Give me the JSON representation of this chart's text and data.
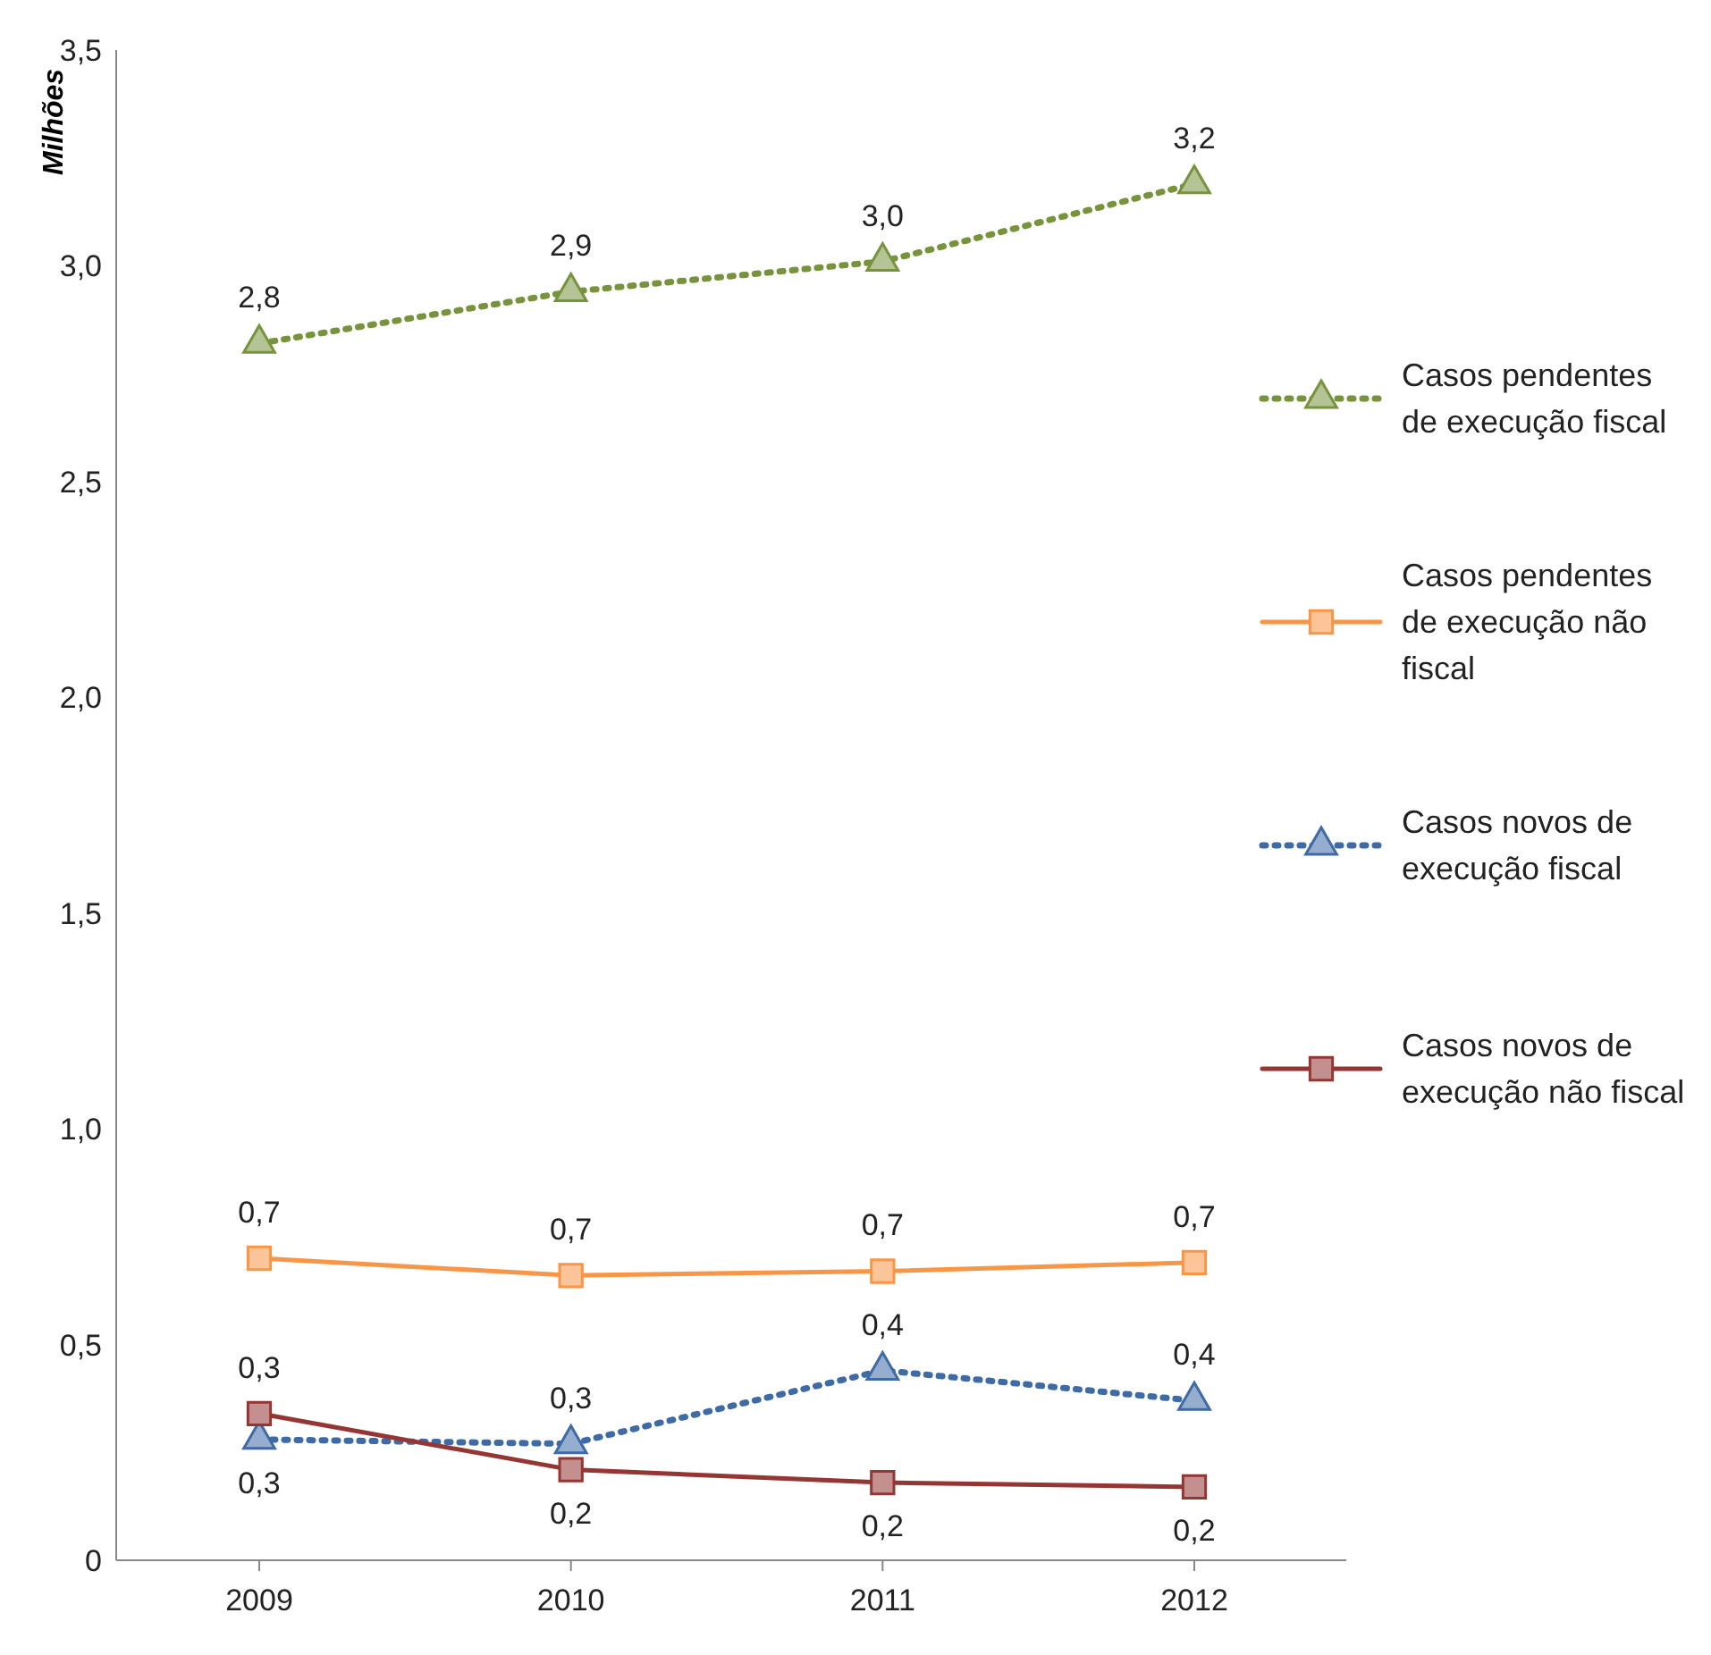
{
  "chart_data": {
    "type": "line",
    "ylabel": "Milhões",
    "categories": [
      "2009",
      "2010",
      "2011",
      "2012"
    ],
    "series": [
      {
        "name": "Casos pendentes de execução fiscal",
        "color": "#77933c",
        "marker": "triangle",
        "line_style": "dotted",
        "values": [
          2.82,
          2.94,
          3.01,
          3.19
        ],
        "value_labels": [
          "2,8",
          "2,9",
          "3,0",
          "3,2"
        ]
      },
      {
        "name": "Casos pendentes de execução não fiscal",
        "color": "#f79646",
        "marker": "square",
        "line_style": "solid",
        "values": [
          0.7,
          0.66,
          0.67,
          0.69
        ],
        "value_labels": [
          "0,7",
          "0,7",
          "0,7",
          "0,7"
        ]
      },
      {
        "name": "Casos novos de execução fiscal",
        "color": "#3e6aa6",
        "marker": "triangle",
        "line_style": "dotted",
        "values": [
          0.28,
          0.27,
          0.44,
          0.37
        ],
        "value_labels": [
          "0,3",
          "0,3",
          "0,4",
          "0,4"
        ]
      },
      {
        "name": "Casos novos de execução não fiscal",
        "color": "#943634",
        "marker": "square",
        "line_style": "solid",
        "values": [
          0.34,
          0.21,
          0.18,
          0.17
        ],
        "value_labels": [
          "0,3",
          "0,2",
          "0,2",
          "0,2"
        ]
      }
    ],
    "ylim": [
      0,
      3.5
    ],
    "yticks": [
      0,
      {
        "value": 0.5,
        "label": "0,5"
      },
      {
        "value": 1,
        "label": "1,0"
      },
      {
        "value": 1.5,
        "label": "1,5"
      },
      {
        "value": 2,
        "label": "2,0"
      },
      {
        "value": 2.5,
        "label": "2,5"
      },
      {
        "value": 3,
        "label": "3,0"
      },
      {
        "value": 3.5,
        "label": "3,5"
      }
    ],
    "grid": false,
    "legend": "right"
  }
}
